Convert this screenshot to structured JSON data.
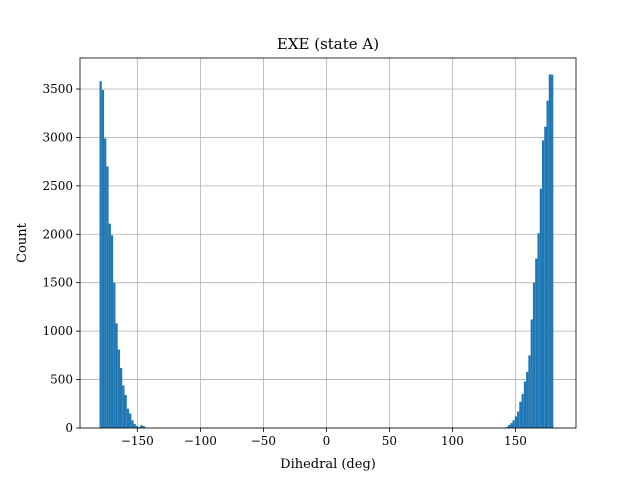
{
  "chart_data": {
    "type": "bar",
    "title": "EXE (state A)",
    "xlabel": "Dihedral (deg)",
    "ylabel": "Count",
    "xlim": [
      -195.5,
      198.0
    ],
    "ylim": [
      0,
      3820
    ],
    "grid": true,
    "bar_color": "#1f77b4",
    "x_ticks": [
      -150,
      -100,
      -50,
      0,
      50,
      100,
      150
    ],
    "x_tick_labels": [
      "−150",
      "−100",
      "−50",
      "0",
      "50",
      "100",
      "150"
    ],
    "y_ticks": [
      0,
      500,
      1000,
      1500,
      2000,
      2500,
      3000,
      3500
    ],
    "y_tick_labels": [
      "0",
      "500",
      "1000",
      "1500",
      "2000",
      "2500",
      "3000",
      "3500"
    ],
    "bin_width": 1.8,
    "bin_left_edges": [
      -180.0,
      -178.2,
      -176.4,
      -174.6,
      -172.8,
      -171.0,
      -169.2,
      -167.4,
      -165.6,
      -163.8,
      -162.0,
      -160.2,
      -158.4,
      -156.6,
      -154.8,
      -153.0,
      -151.2,
      -149.4,
      -147.6,
      -145.8,
      -144.0,
      140.4,
      142.2,
      144.0,
      145.8,
      147.6,
      149.4,
      151.2,
      153.0,
      154.8,
      156.6,
      158.4,
      160.2,
      162.0,
      163.8,
      165.6,
      167.4,
      169.2,
      171.0,
      172.8,
      174.6,
      176.4,
      178.2
    ],
    "counts": [
      3580,
      3490,
      2990,
      2700,
      2110,
      1990,
      1500,
      1080,
      810,
      620,
      440,
      340,
      200,
      150,
      80,
      40,
      20,
      10,
      30,
      20,
      5,
      5,
      10,
      30,
      50,
      80,
      120,
      170,
      270,
      350,
      480,
      580,
      750,
      1120,
      1500,
      1750,
      2010,
      2470,
      2970,
      3110,
      3380,
      3650,
      3650
    ]
  }
}
